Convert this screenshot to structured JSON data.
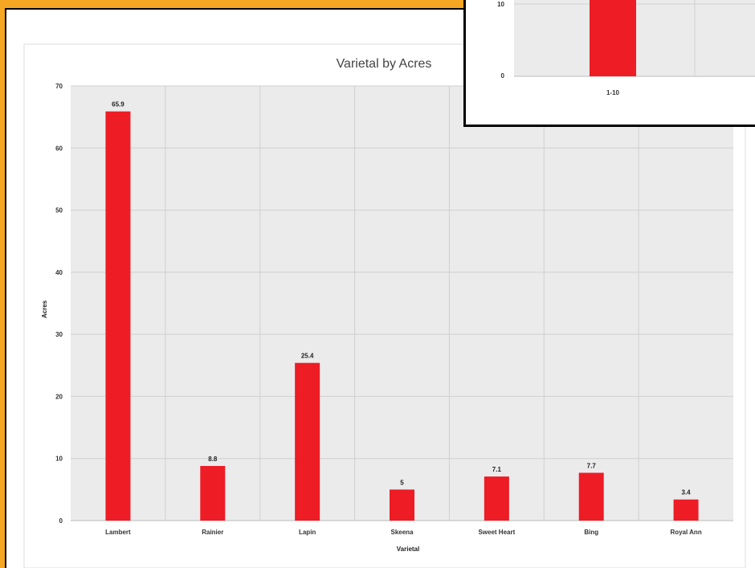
{
  "colors": {
    "bar": "#ee1c25",
    "frame": "#f5a623",
    "plot_bg": "#ebebeb",
    "grid": "#d0d0d0"
  },
  "chart_data": [
    {
      "type": "bar",
      "title": "Varietal by Acres",
      "xlabel": "Varietal",
      "ylabel": "Acres",
      "categories": [
        "Lambert",
        "Rainier",
        "Lapin",
        "Skeena",
        "Sweet Heart",
        "Bing",
        "Royal Ann"
      ],
      "values": [
        65.9,
        8.8,
        25.4,
        5,
        7.1,
        7.7,
        3.4
      ],
      "data_labels": [
        "65.9",
        "8.8",
        "25.4",
        "5",
        "7.1",
        "7.7",
        "3.4"
      ],
      "ylim": [
        0,
        70
      ],
      "yticks": [
        "0",
        "10",
        "20",
        "30",
        "40",
        "50",
        "60",
        "70"
      ],
      "grid": true,
      "legend": "none"
    },
    {
      "type": "bar",
      "title": "",
      "xlabel": "",
      "ylabel": "",
      "categories": [
        "1-10"
      ],
      "visible_yticks": [
        "0",
        "10"
      ],
      "grid": true,
      "legend": "none"
    }
  ]
}
